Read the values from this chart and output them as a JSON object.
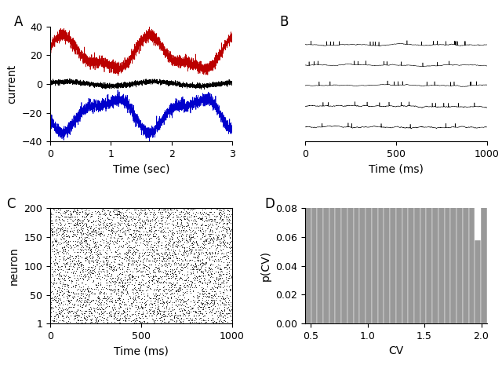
{
  "panel_A": {
    "label": "A",
    "xlim": [
      0,
      3
    ],
    "ylim": [
      -40,
      40
    ],
    "xlabel": "Time (sec)",
    "ylabel": "current",
    "xticks": [
      0,
      1,
      2,
      3
    ],
    "yticks": [
      -40,
      -20,
      0,
      20,
      40
    ],
    "red_mean": 20,
    "red_amp": 10,
    "black_mean": 0,
    "black_amp": 1.5,
    "blue_mean": -20,
    "blue_amp": 10,
    "noise_scale": 2.0,
    "n_points": 3000,
    "freq1": 0.7,
    "freq2": 1.4,
    "red_color": "#bb0000",
    "black_color": "#000000",
    "blue_color": "#0000cc"
  },
  "panel_B": {
    "label": "B",
    "xlim": [
      0,
      1000
    ],
    "xlabel": "Time (ms)",
    "n_traces": 5,
    "spike_color": "#000000",
    "trace_color": "#000000",
    "xticks": [
      0,
      500,
      1000
    ],
    "n_spikes": [
      20,
      12,
      13,
      14,
      9
    ]
  },
  "panel_C": {
    "label": "C",
    "xlim": [
      0,
      1000
    ],
    "ylim": [
      1,
      200
    ],
    "xlabel": "Time (ms)",
    "ylabel": "neuron",
    "xticks": [
      0,
      500,
      1000
    ],
    "yticks": [
      1,
      50,
      100,
      150,
      200
    ],
    "n_neurons": 200,
    "dot_color": "#000000",
    "dot_size": 1.5,
    "spikes_per_neuron": 25
  },
  "panel_D": {
    "label": "D",
    "xlim": [
      0.45,
      2.05
    ],
    "ylim": [
      0,
      0.08
    ],
    "xlabel": "CV",
    "ylabel": "p(CV)",
    "xticks": [
      0.5,
      1.0,
      1.5,
      2.0
    ],
    "yticks": [
      0,
      0.02,
      0.04,
      0.06,
      0.08
    ],
    "bar_color": "#999999",
    "bar_edge_color": "#555555",
    "n_bins": 30,
    "cv_mean": 1.05,
    "cv_std": 0.32
  },
  "figure": {
    "label_fontsize": 12,
    "tick_fontsize": 9,
    "axis_label_fontsize": 10
  }
}
